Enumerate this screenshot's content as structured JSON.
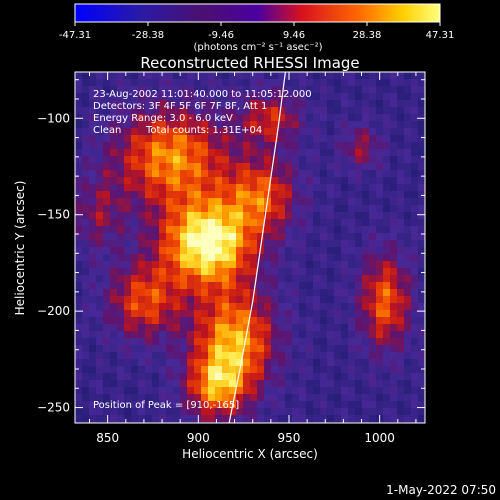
{
  "chart_data": {
    "type": "heatmap",
    "title": "Reconstructed RHESSI Image",
    "xlabel": "Heliocentric X (arcsec)",
    "ylabel": "Heliocentric Y (arcsec)",
    "xlim": [
      832,
      1025
    ],
    "ylim": [
      -258,
      -76
    ],
    "x_ticks": [
      850,
      900,
      950,
      1000
    ],
    "y_ticks": [
      -100,
      -150,
      -200,
      -250
    ],
    "colorbar": {
      "min": -47.31,
      "max": 47.31,
      "tick_labels": [
        "-47.31",
        "-28.38",
        "-9.46",
        "9.46",
        "28.38",
        "47.31"
      ],
      "unit_label": "(photons cm⁻² s⁻¹ asec⁻²)"
    },
    "annotations": {
      "time_range": "23-Aug-2002 11:01:40.000 to 11:05:12.000",
      "detectors": "Detectors: 3F 4F 5F 6F 7F 8F, Att 1",
      "energy": "Energy Range: 3.0 - 6.0 keV",
      "method": "Clean",
      "counts": "Total counts: 1.31E+04",
      "peak": "Position of Peak = [910,-165]"
    },
    "peak_position": [
      910,
      -165
    ],
    "limb_curve": {
      "x": [
        917,
        923,
        930,
        937,
        944,
        948
      ],
      "y": [
        -258,
        -230,
        -195,
        -150,
        -105,
        -76
      ]
    },
    "sources": [
      {
        "x": 905,
        "y": -165,
        "amp": 1.0,
        "sx": 18,
        "sy": 16
      },
      {
        "x": 920,
        "y": -215,
        "amp": 0.75,
        "sx": 16,
        "sy": 18
      },
      {
        "x": 910,
        "y": -240,
        "amp": 0.6,
        "sx": 12,
        "sy": 12
      },
      {
        "x": 885,
        "y": -120,
        "amp": 0.7,
        "sx": 22,
        "sy": 18
      },
      {
        "x": 935,
        "y": -140,
        "amp": 0.55,
        "sx": 14,
        "sy": 14
      },
      {
        "x": 870,
        "y": -195,
        "amp": 0.55,
        "sx": 14,
        "sy": 14
      },
      {
        "x": 940,
        "y": -100,
        "amp": 0.45,
        "sx": 12,
        "sy": 10
      },
      {
        "x": 1003,
        "y": -195,
        "amp": 0.6,
        "sx": 10,
        "sy": 18
      },
      {
        "x": 990,
        "y": -115,
        "amp": 0.35,
        "sx": 8,
        "sy": 8
      },
      {
        "x": 845,
        "y": -150,
        "amp": 0.3,
        "sx": 10,
        "sy": 14
      }
    ],
    "grid": false
  },
  "footer": {
    "datestamp": "1-May-2022 07:50"
  },
  "colors": {
    "background": "#000000",
    "frame": "#ffffff"
  }
}
